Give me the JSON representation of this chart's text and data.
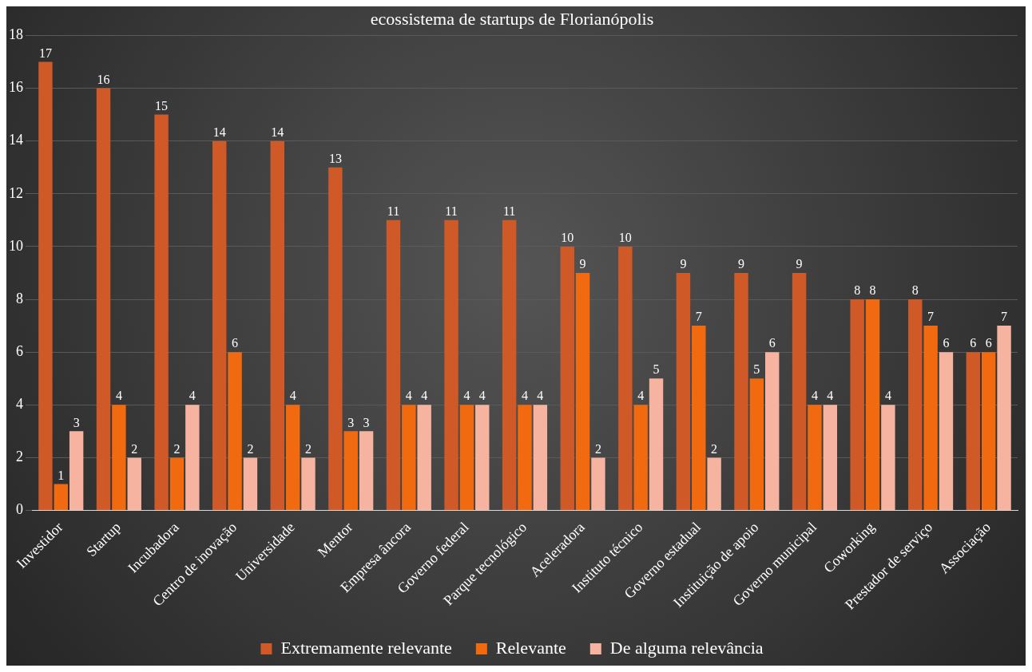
{
  "chart_data": {
    "type": "bar",
    "title": "ecossistema de startups de Florianópolis",
    "categories": [
      "Investidor",
      "Startup",
      "Incubadora",
      "Centro de inovação",
      "Universidade",
      "Mentor",
      "Empresa âncora",
      "Governo federal",
      "Parque tecnológico",
      "Aceleradora",
      "Instituto técnico",
      "Governo estadual",
      "Instituição de apoio",
      "Governo municipal",
      "Coworking",
      "Prestador de serviço",
      "Associação"
    ],
    "series": [
      {
        "name": "Extremamente relevante",
        "color": "#cf5a28",
        "values": [
          17,
          16,
          15,
          14,
          14,
          13,
          11,
          11,
          11,
          10,
          10,
          9,
          9,
          9,
          8,
          8,
          6
        ]
      },
      {
        "name": "Relevante",
        "color": "#f26a10",
        "values": [
          1,
          4,
          2,
          6,
          4,
          3,
          4,
          4,
          4,
          9,
          4,
          7,
          5,
          4,
          8,
          7,
          6
        ]
      },
      {
        "name": "De alguma relevância",
        "color": "#f5b3a0",
        "values": [
          3,
          2,
          4,
          2,
          2,
          3,
          4,
          4,
          4,
          2,
          5,
          2,
          6,
          4,
          4,
          6,
          7
        ]
      }
    ],
    "ylim": [
      0,
      18
    ],
    "yticks": [
      0,
      2,
      4,
      6,
      8,
      10,
      12,
      14,
      16,
      18
    ],
    "grid": "y",
    "legend": "bottom",
    "data_labels": true
  }
}
